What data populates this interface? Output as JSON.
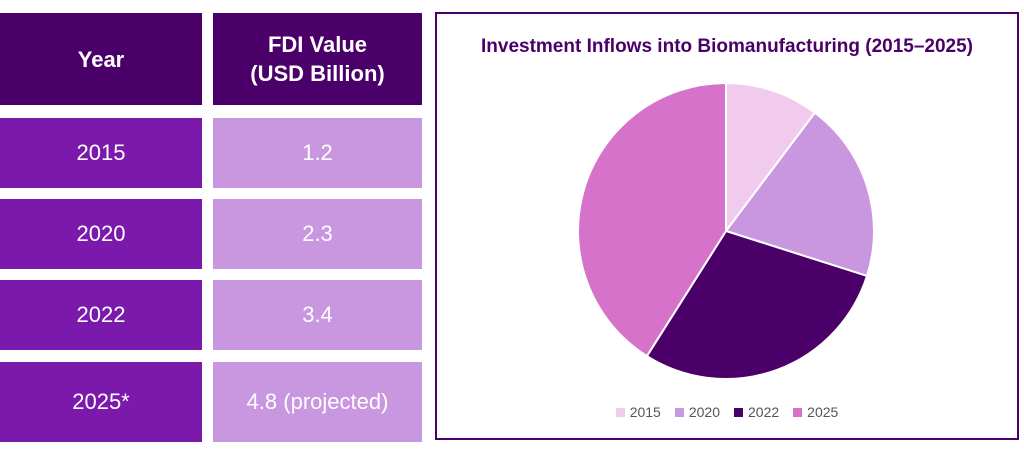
{
  "table": {
    "headers": {
      "year": "Year",
      "value_line1": "FDI Value",
      "value_line2": "(USD Billion)"
    },
    "rows": [
      {
        "year": "2015",
        "value": "1.2"
      },
      {
        "year": "2020",
        "value": "2.3"
      },
      {
        "year": "2022",
        "value": "3.4"
      },
      {
        "year": "2025*",
        "value": "4.8 (projected)"
      }
    ]
  },
  "chart_data": {
    "type": "pie",
    "title": "Investment Inflows into Biomanufacturing (2015–2025)",
    "categories": [
      "2015",
      "2020",
      "2022",
      "2025"
    ],
    "values": [
      1.2,
      2.3,
      3.4,
      4.8
    ],
    "colors": [
      "#f1cbee",
      "#c996e0",
      "#4b0069",
      "#d672c9"
    ],
    "legend_position": "bottom"
  }
}
